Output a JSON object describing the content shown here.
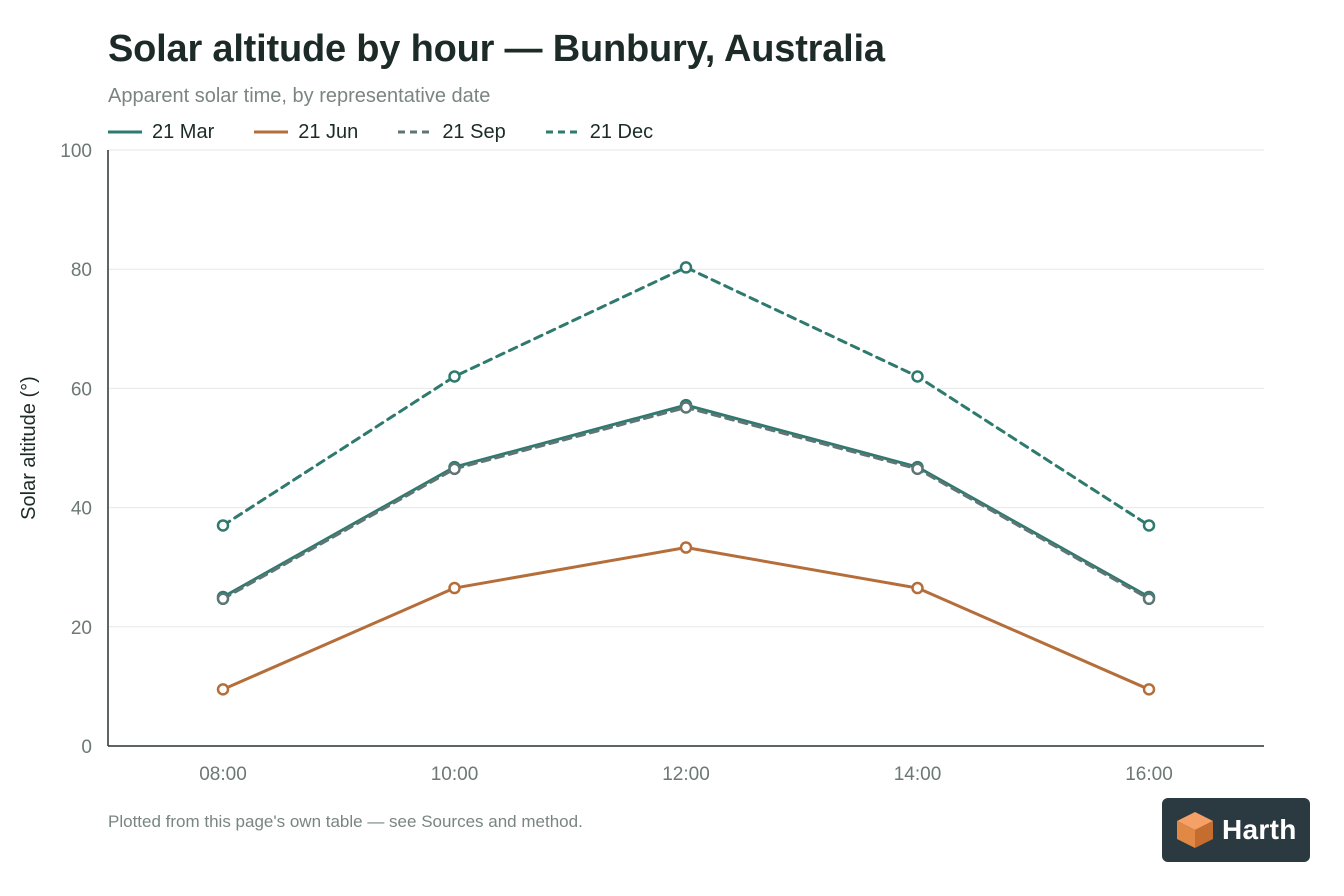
{
  "chart_data": {
    "type": "line",
    "title": "Solar altitude by hour — Bunbury, Australia",
    "subtitle": "Apparent solar time, by representative date",
    "xlabel": "",
    "ylabel": "Solar altitude (°)",
    "categories": [
      "08:00",
      "10:00",
      "12:00",
      "14:00",
      "16:00"
    ],
    "ylim": [
      0,
      100
    ],
    "yticks": [
      0,
      20,
      40,
      60,
      80,
      100
    ],
    "grid": true,
    "legend_position": "top-left",
    "series": [
      {
        "name": "21 Mar",
        "values": [
          25.0,
          46.8,
          57.2,
          46.8,
          25.0
        ],
        "color": "#2e7a6e",
        "dashed": false
      },
      {
        "name": "21 Jun",
        "values": [
          9.5,
          26.5,
          33.3,
          26.5,
          9.5
        ],
        "color": "#b56e3a",
        "dashed": false
      },
      {
        "name": "21 Sep",
        "values": [
          24.7,
          46.5,
          56.8,
          46.5,
          24.7
        ],
        "color": "#5e7575",
        "dashed": true
      },
      {
        "name": "21 Dec",
        "values": [
          37.0,
          62.0,
          80.3,
          62.0,
          37.0
        ],
        "color": "#2e7a6e",
        "dashed": true
      }
    ]
  },
  "footnote": "Plotted from this page's own table — see Sources and method.",
  "brand": {
    "name": "Harth",
    "logo_icon": "cube-icon",
    "logo_colors": [
      "#f5a066",
      "#e08844",
      "#c46d2e"
    ]
  }
}
